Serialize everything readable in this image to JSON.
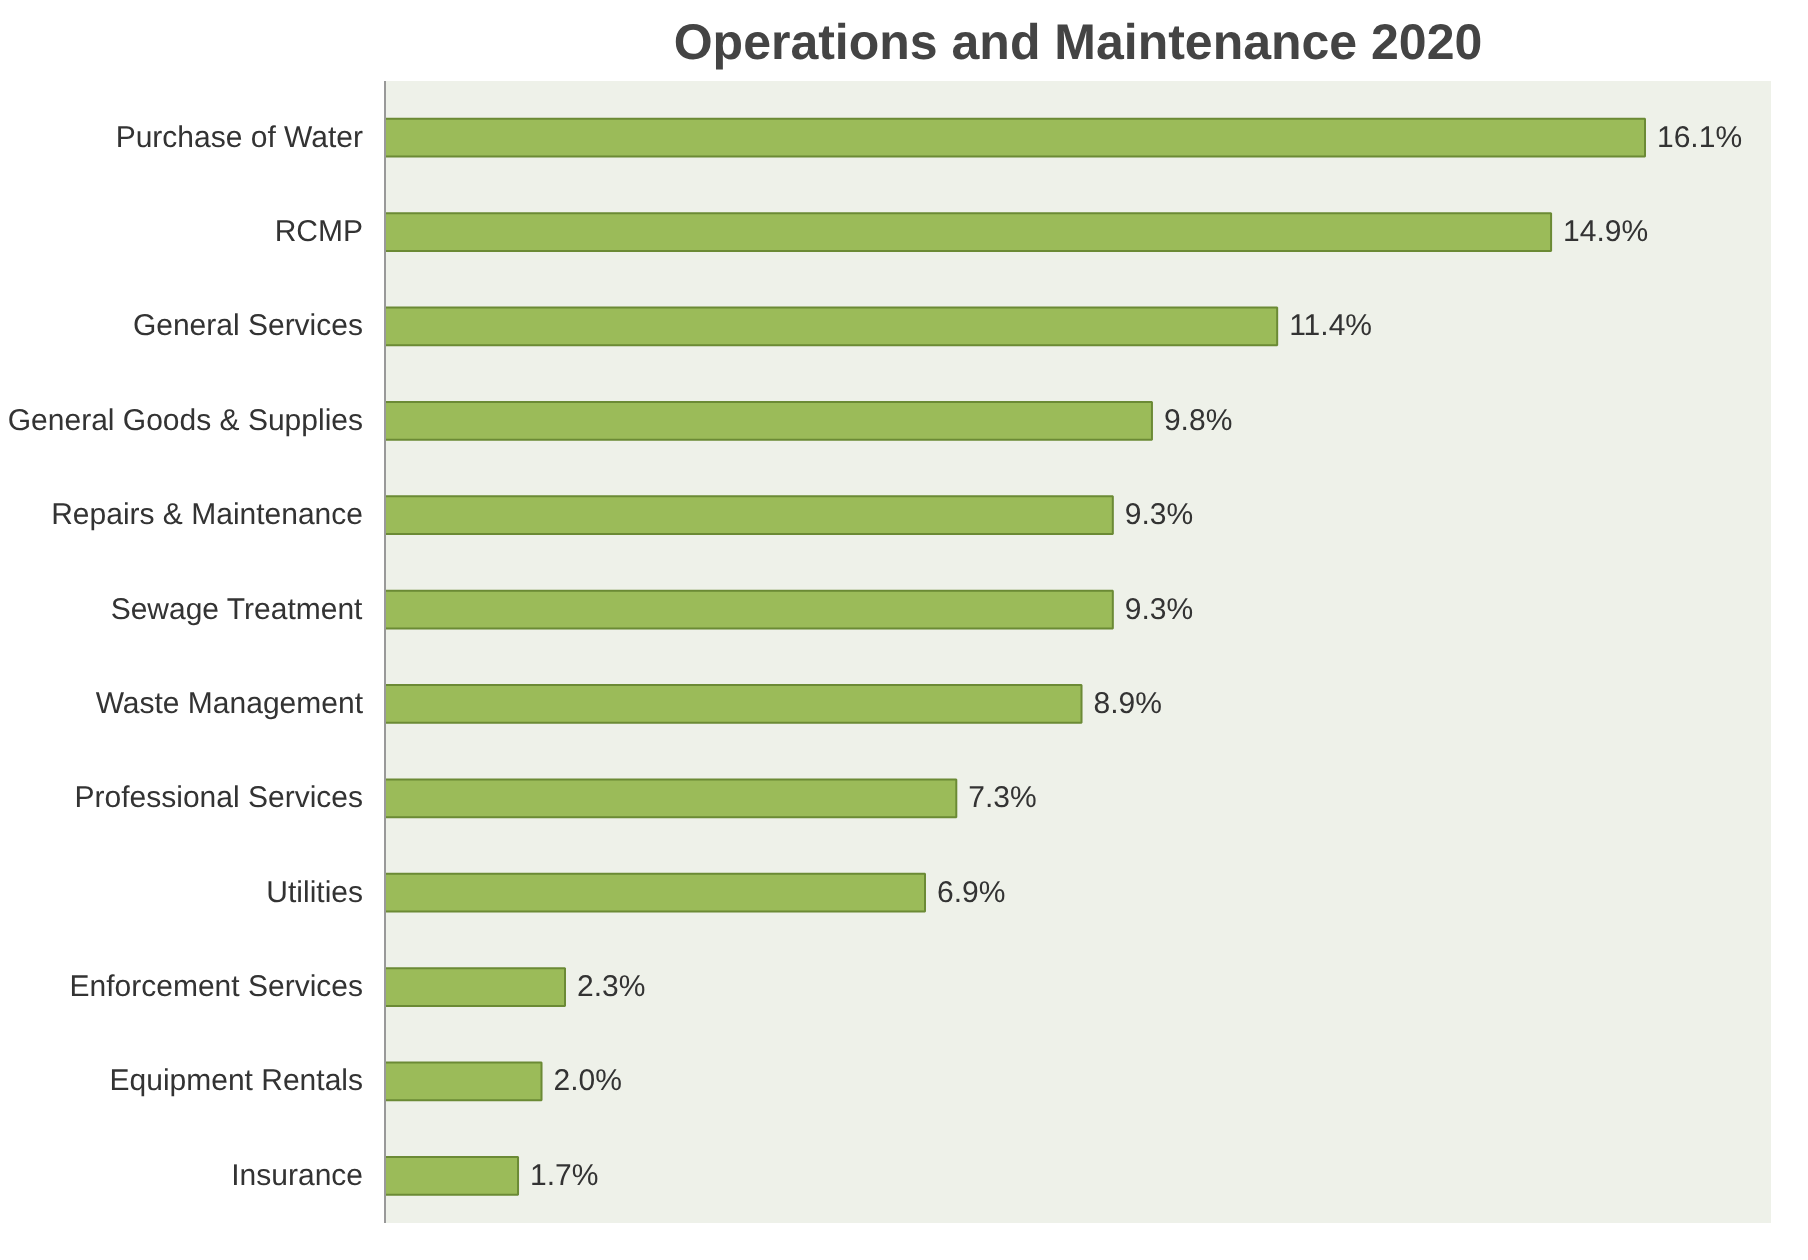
{
  "chart_data": {
    "type": "bar",
    "orientation": "horizontal",
    "title": "Operations and Maintenance 2020",
    "categories": [
      "Purchase of Water",
      "RCMP",
      "General Services",
      "General Goods & Supplies",
      "Repairs & Maintenance",
      "Sewage Treatment",
      "Waste Management",
      "Professional Services",
      "Utilities",
      "Enforcement Services",
      "Equipment Rentals",
      "Insurance"
    ],
    "values": [
      16.1,
      14.9,
      11.4,
      9.8,
      9.3,
      9.3,
      8.9,
      7.3,
      6.9,
      2.3,
      2.0,
      1.7
    ],
    "value_labels": [
      "16.1%",
      "14.9%",
      "11.4%",
      "9.8%",
      "9.3%",
      "9.3%",
      "8.9%",
      "7.3%",
      "6.9%",
      "2.3%",
      "2.0%",
      "1.7%"
    ],
    "color": "#9bbb59"
  }
}
